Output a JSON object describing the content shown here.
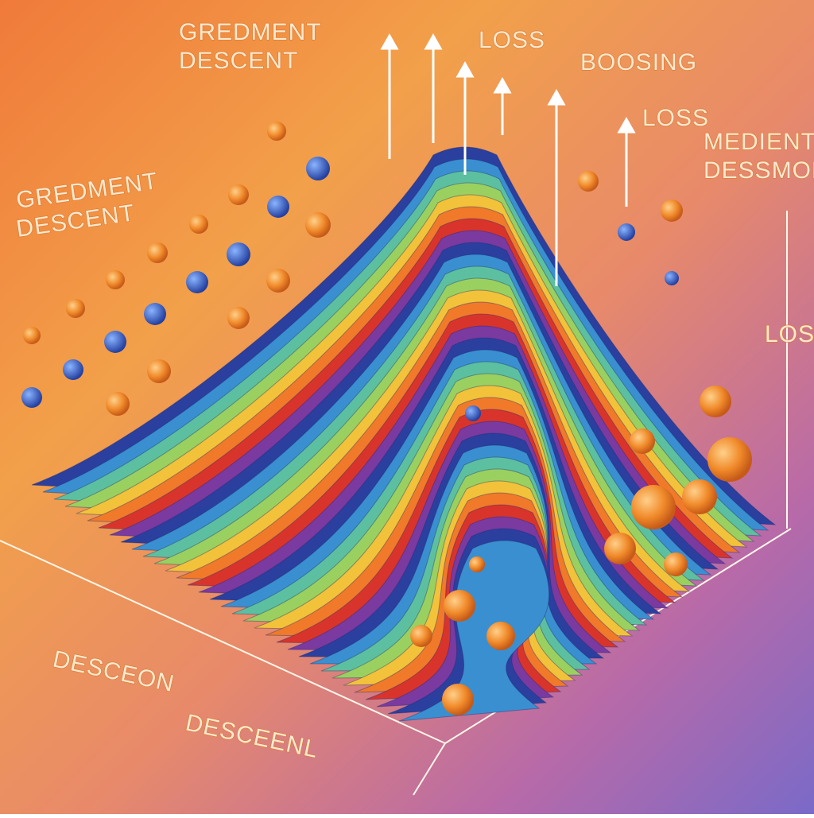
{
  "labels": [
    {
      "lines": [
        "GREDMENT",
        "DESCENT"
      ]
    },
    {
      "lines": [
        "LOSS"
      ]
    },
    {
      "lines": [
        "BOOSING"
      ]
    },
    {
      "lines": [
        "LOSS"
      ]
    },
    {
      "lines": [
        "MEDIENT",
        "DESSMON"
      ]
    },
    {
      "lines": [
        "GREDMENT",
        "DESCENT"
      ]
    },
    {
      "lines": [
        "LOSS"
      ]
    },
    {
      "lines": [
        "DESCEON"
      ]
    },
    {
      "lines": [
        "DESCEENL"
      ]
    }
  ]
}
